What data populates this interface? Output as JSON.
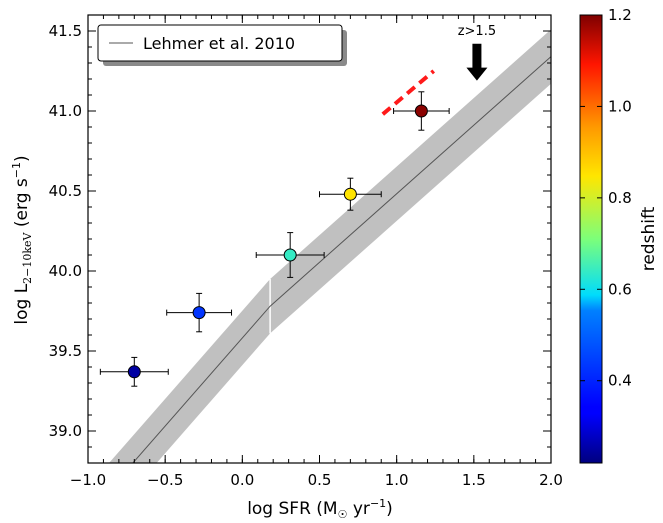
{
  "chart_data": {
    "type": "scatter",
    "xlabel": "log SFR (M",
    "xlabel_sub": "☉",
    "xlabel_rest": " yr",
    "xlabel_sup": "−1",
    "xlabel_end": ")",
    "ylabel": "log L",
    "ylabel_sub": "2−10keV",
    "ylabel_rest": " (erg s",
    "ylabel_sup": "−1",
    "ylabel_end": ")",
    "xlim": [
      -1.0,
      2.0
    ],
    "ylim": [
      38.8,
      41.6
    ],
    "xticks": [
      {
        "value": -1.0,
        "label": "−1.0"
      },
      {
        "value": -0.5,
        "label": "−0.5"
      },
      {
        "value": 0.0,
        "label": "0.0"
      },
      {
        "value": 0.5,
        "label": "0.5"
      },
      {
        "value": 1.0,
        "label": "1.0"
      },
      {
        "value": 1.5,
        "label": "1.5"
      },
      {
        "value": 2.0,
        "label": "2.0"
      }
    ],
    "yticks": [
      {
        "value": 39.0,
        "label": "39.0"
      },
      {
        "value": 39.5,
        "label": "39.5"
      },
      {
        "value": 40.0,
        "label": "40.0"
      },
      {
        "value": 40.5,
        "label": "40.5"
      },
      {
        "value": 41.0,
        "label": "41.0"
      },
      {
        "value": 41.5,
        "label": "41.5"
      }
    ],
    "points": [
      {
        "x": -0.7,
        "y": 39.37,
        "xerr": 0.22,
        "yerr": 0.09,
        "redshift": 0.25
      },
      {
        "x": -0.28,
        "y": 39.74,
        "xerr": 0.21,
        "yerr": 0.12,
        "redshift": 0.42
      },
      {
        "x": 0.31,
        "y": 40.1,
        "xerr": 0.22,
        "yerr": 0.14,
        "redshift": 0.64
      },
      {
        "x": 0.7,
        "y": 40.48,
        "xerr": 0.2,
        "yerr": 0.1,
        "redshift": 0.85
      },
      {
        "x": 1.16,
        "y": 41.0,
        "xerr": 0.18,
        "yerr": 0.12,
        "redshift": 1.19
      }
    ],
    "relation": {
      "name": "Lehmer et al. 2010",
      "low": {
        "x": [
          -1.0,
          0.18
        ],
        "y": [
          38.48,
          39.78
        ]
      },
      "high": {
        "x": [
          0.18,
          2.0
        ],
        "y": [
          39.78,
          41.34
        ]
      },
      "scatter": 0.17
    },
    "dashed_segment": {
      "x": [
        0.91,
        1.24
      ],
      "y": [
        40.98,
        41.25
      ],
      "color": "#ff1a1a"
    },
    "arrow_annotation": {
      "text": "z>1.5",
      "x": 1.52,
      "y_top": 41.42,
      "y_bottom": 41.19
    },
    "colorbar": {
      "label": "redshift",
      "range": [
        0.22,
        1.2
      ],
      "ticks": [
        {
          "value": 0.4,
          "label": "0.4"
        },
        {
          "value": 0.6,
          "label": "0.6"
        },
        {
          "value": 0.8,
          "label": "0.8"
        },
        {
          "value": 1.0,
          "label": "1.0"
        },
        {
          "value": 1.2,
          "label": "1.2"
        }
      ],
      "colormap": "jet"
    },
    "legend_placement": "top-left",
    "grid": false
  }
}
